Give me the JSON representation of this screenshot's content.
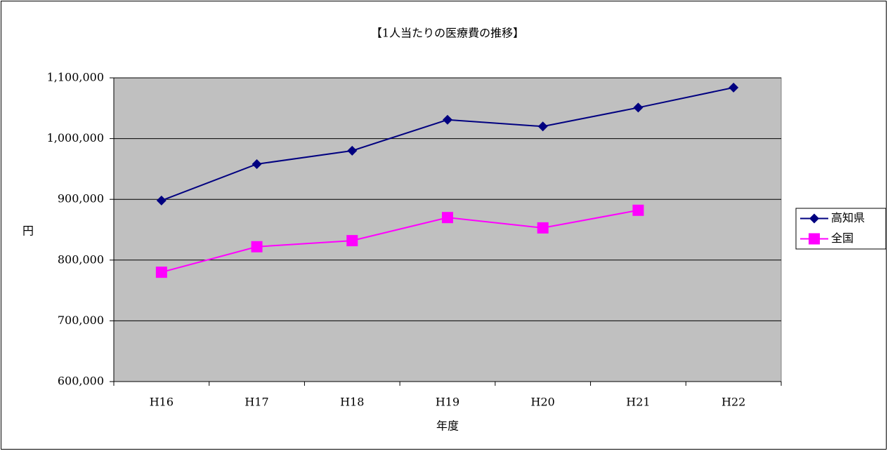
{
  "chart_data": {
    "type": "line",
    "title": "【1人当たりの医療費の推移】",
    "x_label": "年度",
    "y_label": "円",
    "categories": [
      "H16",
      "H17",
      "H18",
      "H19",
      "H20",
      "H21",
      "H22"
    ],
    "series": [
      {
        "name": "高知県",
        "color": "#000080",
        "marker": "diamond",
        "values": [
          898000,
          958000,
          980000,
          1031000,
          1020000,
          1051000,
          1084000
        ]
      },
      {
        "name": "全国",
        "color": "#ff00ff",
        "marker": "square",
        "values": [
          780000,
          822000,
          832000,
          870000,
          853000,
          882000,
          null
        ]
      }
    ],
    "ylim": [
      600000,
      1100000
    ],
    "yticks": [
      {
        "value": 600000,
        "label": "600,000"
      },
      {
        "value": 700000,
        "label": "700,000"
      },
      {
        "value": 800000,
        "label": "800,000"
      },
      {
        "value": 900000,
        "label": "900,000"
      },
      {
        "value": 1000000,
        "label": "1,000,000"
      },
      {
        "value": 1100000,
        "label": "1,100,000"
      }
    ],
    "grid": true,
    "legend": "right",
    "plot_background": "#c0c0c0"
  }
}
